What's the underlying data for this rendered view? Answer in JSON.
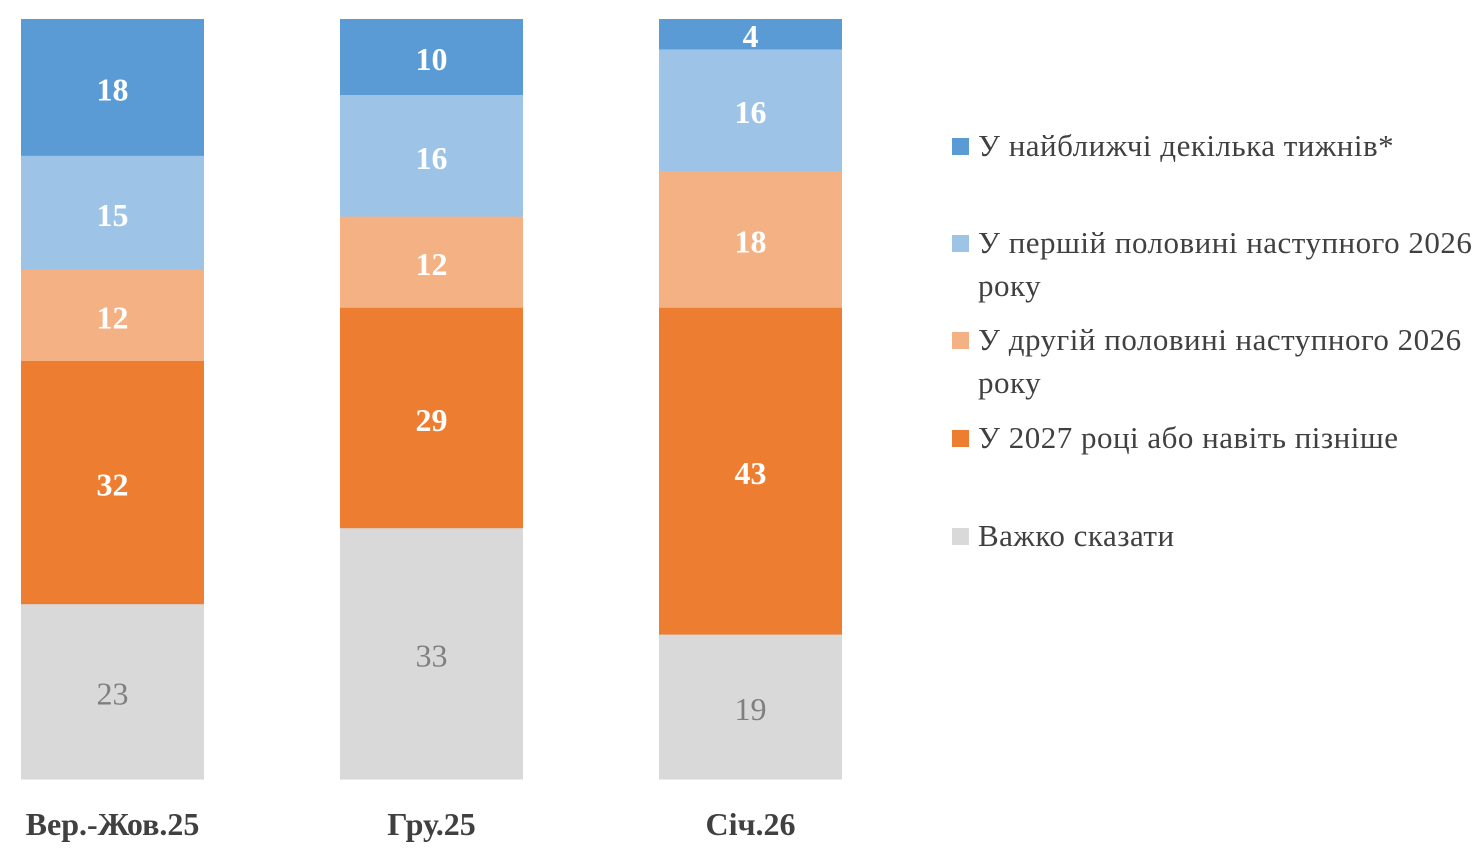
{
  "chart_data": {
    "type": "bar",
    "stacked": true,
    "categories": [
      "Вер.-Жов.25",
      "Гру.25",
      "Січ.26"
    ],
    "series": [
      {
        "name": "У найближчі декілька тижнів*",
        "color": "#5B9BD5",
        "label_color": "#FFFFFF",
        "label_bold": true,
        "values": [
          18,
          10,
          4
        ]
      },
      {
        "name": "У першій половині наступного 2026 року",
        "color": "#9DC3E6",
        "label_color": "#FFFFFF",
        "label_bold": true,
        "values": [
          15,
          16,
          16
        ]
      },
      {
        "name": "У другій половині наступного 2026 року",
        "color": "#F4B183",
        "label_color": "#FFFFFF",
        "label_bold": true,
        "values": [
          12,
          12,
          18
        ]
      },
      {
        "name": "У 2027 році або навіть пізніше",
        "color": "#ED7D31",
        "label_color": "#FFFFFF",
        "label_bold": true,
        "values": [
          32,
          29,
          43
        ]
      },
      {
        "name": "Важко сказати",
        "color": "#D9D9D9",
        "label_color": "#7F7F7F",
        "label_bold": false,
        "values": [
          23,
          33,
          19
        ]
      }
    ],
    "stack_order": "top-to-bottom",
    "legend_position": "right",
    "grid": false,
    "axes_visible": false,
    "ylim": [
      0,
      100
    ]
  }
}
